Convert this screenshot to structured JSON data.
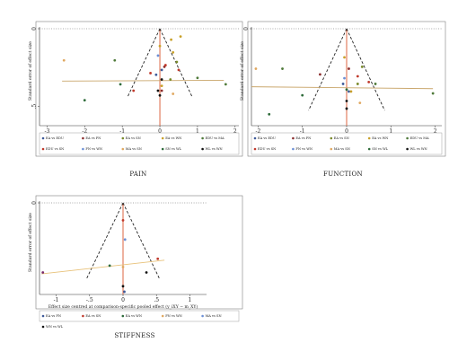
{
  "figure": {
    "panel_labels": [
      "PAIN",
      "FUNCTION",
      "STIFFNESS"
    ]
  },
  "chart_data": [
    {
      "type": "scatter",
      "subtype": "comparison-adjusted funnel plot",
      "title": "PAIN",
      "xlabel": "Effect size centred at comparison-specific pooled effect (y_iXY − m_XY)",
      "ylabel": "Standard error of effect size",
      "xlim": [
        -3.2,
        2.1
      ],
      "ylim": [
        0,
        0.62
      ],
      "x_ticks": [
        -3,
        -2,
        -1,
        0,
        1,
        2
      ],
      "x_tick_labels": [
        "-3",
        "-2",
        "-1",
        "0",
        "1",
        "2"
      ],
      "y_ticks": [
        0,
        0.5
      ],
      "y_tick_labels": [
        "0",
        ".5"
      ],
      "y_inverted": true,
      "funnel_apex": [
        0,
        0
      ],
      "funnel_half_width_at_max_se": 0.86,
      "funnel_max_se": 0.44,
      "reference_line_x": 0,
      "regression_line": {
        "x": [
          -2.6,
          1.7
        ],
        "y": [
          0.34,
          0.335
        ],
        "color": "#c9a66b"
      },
      "legend_position": "bottom",
      "legend_columns": 5,
      "series": [
        {
          "name": "EA vs EDU",
          "color": "#3d5a99",
          "points": [
            [
              0.05,
              0.27
            ],
            [
              -0.1,
              0.3
            ]
          ]
        },
        {
          "name": "EA vs FN",
          "color": "#8b2d2d",
          "points": [
            [
              0.12,
              0.25
            ],
            [
              0.05,
              0.4
            ]
          ]
        },
        {
          "name": "EA vs SN",
          "color": "#7a8a2a",
          "points": [
            [
              0.28,
              0.33
            ],
            [
              0.45,
              0.22
            ]
          ]
        },
        {
          "name": "EA vs WN",
          "color": "#c9a12a",
          "points": [
            [
              0.3,
              0.08
            ],
            [
              0.35,
              0.16
            ],
            [
              0.0,
              0.12
            ],
            [
              0.55,
              0.06
            ],
            [
              0.05,
              0.37
            ]
          ]
        },
        {
          "name": "EDU vs MA",
          "color": "#4f7a3a",
          "points": [
            [
              -1.2,
              0.21
            ],
            [
              1.0,
              0.32
            ],
            [
              1.75,
              0.36
            ]
          ]
        },
        {
          "name": "EDU vs SN",
          "color": "#c0392b",
          "points": [
            [
              -0.25,
              0.29
            ],
            [
              -0.7,
              0.4
            ],
            [
              0.15,
              0.24
            ],
            [
              0.5,
              0.27
            ]
          ]
        },
        {
          "name": "FN vs WN",
          "color": "#6b8fd6",
          "points": [
            [
              -0.05,
              0.18
            ]
          ]
        },
        {
          "name": "MA vs SN",
          "color": "#e0a860",
          "points": [
            [
              -2.55,
              0.21
            ],
            [
              0.35,
              0.42
            ]
          ]
        },
        {
          "name": "SN vs WL",
          "color": "#2e6b3a",
          "points": [
            [
              -2.0,
              0.46
            ],
            [
              -1.05,
              0.36
            ]
          ]
        },
        {
          "name": "WL vs WN",
          "color": "#111111",
          "points": [
            [
              0.0,
              0.43
            ],
            [
              -0.05,
              0.4
            ],
            [
              0.05,
              0.33
            ]
          ]
        }
      ]
    },
    {
      "type": "scatter",
      "subtype": "comparison-adjusted funnel plot",
      "title": "FUNCTION",
      "xlabel": "Effect size centred at comparison-specific pooled effect (y_iXY − m_XY)",
      "ylabel": "Standard error of effect size",
      "xlim": [
        -2.15,
        2.15
      ],
      "ylim": [
        0,
        0.52
      ],
      "x_ticks": [
        -2,
        -1,
        0,
        1,
        2
      ],
      "x_tick_labels": [
        "-2",
        "-1",
        "0",
        "1",
        "2"
      ],
      "y_ticks": [
        0
      ],
      "y_tick_labels": [
        "0"
      ],
      "y_inverted": true,
      "funnel_apex": [
        0,
        0
      ],
      "funnel_half_width_at_max_se": 0.86,
      "funnel_max_se": 0.44,
      "reference_line_x": 0,
      "regression_line": {
        "x": [
          -2.15,
          1.95
        ],
        "y": [
          0.315,
          0.325
        ],
        "color": "#c9a66b"
      },
      "legend_position": "bottom",
      "legend_columns": 5,
      "series": [
        {
          "name": "EA vs EDU",
          "color": "#3d5a99",
          "points": [
            [
              0.05,
              0.34
            ],
            [
              -0.08,
              0.3
            ]
          ]
        },
        {
          "name": "EA vs FN",
          "color": "#8b2d2d",
          "points": [
            [
              0.05,
              0.22
            ],
            [
              -0.6,
              0.25
            ]
          ]
        },
        {
          "name": "EA vs SN",
          "color": "#7a8a2a",
          "points": [
            [
              0.25,
              0.3
            ],
            [
              0.35,
              0.21
            ]
          ]
        },
        {
          "name": "EA vs WN",
          "color": "#c9a12a",
          "points": [
            [
              -0.05,
              0.16
            ],
            [
              0.1,
              0.34
            ]
          ]
        },
        {
          "name": "EDU vs MA",
          "color": "#4f7a3a",
          "points": [
            [
              -1.45,
              0.22
            ],
            [
              0.65,
              0.3
            ],
            [
              1.95,
              0.35
            ]
          ]
        },
        {
          "name": "EDU vs SN",
          "color": "#c0392b",
          "points": [
            [
              0.25,
              0.26
            ],
            [
              0.5,
              0.29
            ]
          ]
        },
        {
          "name": "FN vs WN",
          "color": "#6b8fd6",
          "points": [
            [
              -0.05,
              0.27
            ]
          ]
        },
        {
          "name": "MA vs SN",
          "color": "#e0a860",
          "points": [
            [
              -2.05,
              0.22
            ],
            [
              0.3,
              0.4
            ]
          ]
        },
        {
          "name": "SN vs WL",
          "color": "#2e6b3a",
          "points": [
            [
              -1.75,
              0.46
            ],
            [
              -1.0,
              0.36
            ],
            [
              0.0,
              0.33
            ]
          ]
        },
        {
          "name": "WL vs WN",
          "color": "#111111",
          "points": [
            [
              0.0,
              0.43
            ],
            [
              0.0,
              0.39
            ]
          ]
        }
      ]
    },
    {
      "type": "scatter",
      "subtype": "comparison-adjusted funnel plot",
      "title": "STIFFNESS",
      "xlabel": "Effect size centred at comparison-specific pooled effect (y_iXY − m_XY)",
      "ylabel": "Standard error of effect size",
      "xlim": [
        -1.25,
        1.25
      ],
      "ylim": [
        0,
        0.34
      ],
      "x_ticks": [
        -1,
        -0.5,
        0,
        0.5,
        1
      ],
      "x_tick_labels": [
        "-1",
        "-.5",
        "0",
        ".5",
        "1"
      ],
      "y_ticks": [
        0
      ],
      "y_tick_labels": [
        "0"
      ],
      "y_inverted": true,
      "funnel_apex": [
        0,
        0
      ],
      "funnel_half_width_at_max_se": 0.55,
      "funnel_max_se": 0.285,
      "reference_line_x": 0,
      "regression_line": {
        "x": [
          -1.22,
          0.62
        ],
        "y": [
          0.265,
          0.215
        ],
        "color": "#e8c27a"
      },
      "legend_position": "bottom",
      "legend_columns": 5,
      "series": [
        {
          "name": "EA vs FN",
          "color": "#3d5a99",
          "points": [
            [
              0.02,
              0.33
            ]
          ]
        },
        {
          "name": "EA vs SN",
          "color": "#c0392b",
          "points": [
            [
              0.52,
              0.21
            ],
            [
              0.0,
              0.07
            ]
          ]
        },
        {
          "name": "EA vs WN",
          "color": "#2e6b3a",
          "points": [
            [
              -0.2,
              0.235
            ]
          ]
        },
        {
          "name": "FN vs WN",
          "color": "#e0a860",
          "points": [
            [
              0.0,
              0.24
            ]
          ]
        },
        {
          "name": "MA vs SN",
          "color": "#6b8fd6",
          "points": [
            [
              0.03,
              0.14
            ]
          ]
        },
        {
          "name": "WN vs WL",
          "color": "#111111",
          "points": [
            [
              0.0,
              0.31
            ],
            [
              0.35,
              0.26
            ]
          ]
        },
        {
          "name": "EA vs FN",
          "color": "#7a2a6b",
          "points": [
            [
              -1.2,
              0.26
            ]
          ]
        }
      ]
    }
  ]
}
